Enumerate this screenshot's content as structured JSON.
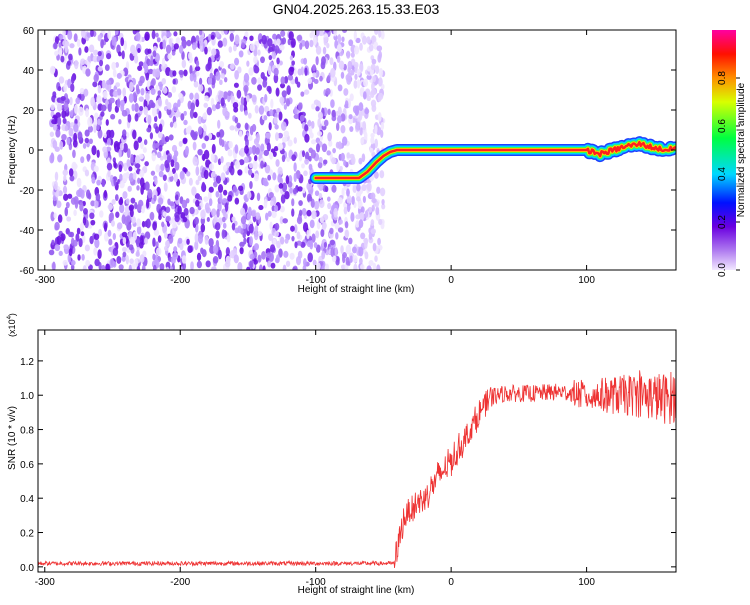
{
  "title": "GN04.2025.263.15.33.E03",
  "chart_data": [
    {
      "type": "heatmap",
      "xlabel": "Height of straight line (km)",
      "ylabel": "Frequency (Hz)",
      "xlim": [
        -305,
        166
      ],
      "ylim": [
        -60,
        60
      ],
      "xticks": [
        -300,
        -200,
        -100,
        0,
        100
      ],
      "yticks": [
        -60,
        -40,
        -20,
        0,
        20,
        40,
        60
      ],
      "noise_region_x": [
        -305,
        -60
      ],
      "ridge": {
        "x": [
          -100,
          -85,
          -75,
          -68,
          -62,
          -55,
          -50,
          -45,
          -40,
          0,
          40,
          60,
          80,
          100,
          110,
          120,
          130,
          140,
          150,
          160,
          166
        ],
        "y": [
          -14,
          -14,
          -14,
          -14,
          -11,
          -6,
          -3,
          -1,
          0,
          0,
          0,
          0,
          0,
          0,
          -2,
          0,
          2,
          3,
          1,
          0,
          1
        ]
      },
      "colorbar": {
        "label": "Normalized spectral amplitude",
        "ticks": [
          0.0,
          0.2,
          0.4,
          0.6,
          0.8
        ],
        "range": [
          0,
          1
        ],
        "colors": [
          "#e8d8ff",
          "#8a2be2",
          "#0000ff",
          "#00ffff",
          "#00ff00",
          "#ffff00",
          "#ff8000",
          "#ff0000",
          "#ff00a0"
        ]
      }
    },
    {
      "type": "line",
      "xlabel": "Height of straight line (km)",
      "ylabel": "SNR (10 * v/v)",
      "multiplier": "(x10",
      "multiplier_exp": "4",
      "multiplier_close": ")",
      "xlim": [
        -305,
        166
      ],
      "ylim": [
        -0.03,
        1.38
      ],
      "xticks": [
        -300,
        -200,
        -100,
        0,
        100
      ],
      "yticks": [
        0.0,
        0.2,
        0.4,
        0.6,
        0.8,
        1.0,
        1.2
      ],
      "color": "#ee3333",
      "series_anchor": {
        "x": [
          -305,
          -60,
          -42,
          -40,
          -35,
          -30,
          -20,
          -10,
          0,
          10,
          20,
          25,
          30,
          40,
          60,
          80,
          100,
          120,
          140,
          160,
          166
        ],
        "y": [
          0.02,
          0.02,
          0.02,
          0.1,
          0.28,
          0.34,
          0.4,
          0.52,
          0.62,
          0.74,
          0.88,
          0.94,
          0.99,
          1.01,
          1.01,
          1.02,
          1.0,
          1.0,
          1.0,
          0.98,
          1.0
        ]
      }
    }
  ]
}
